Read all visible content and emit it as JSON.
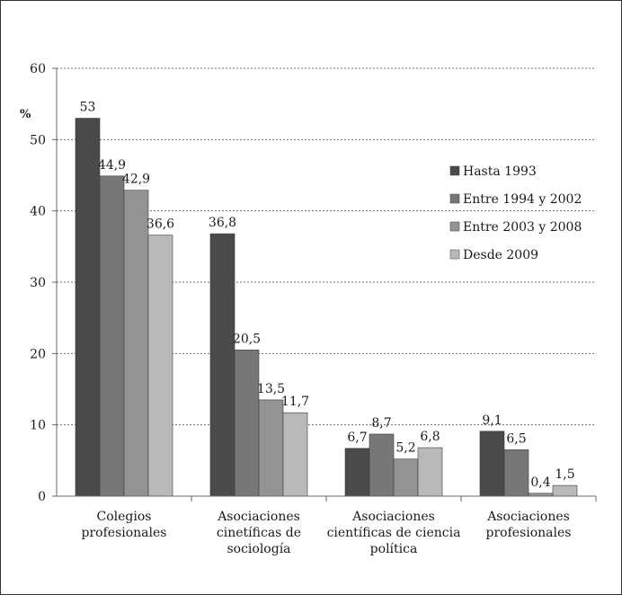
{
  "chart_data": {
    "type": "bar",
    "ylabel": "%",
    "ylim": [
      0,
      60
    ],
    "yticks": [
      0,
      10,
      20,
      30,
      40,
      50,
      60
    ],
    "grid": true,
    "legend_position": "right",
    "categories": [
      [
        "Colegios",
        "profesionales"
      ],
      [
        "Asociaciones",
        "cinetíficas de",
        "sociología"
      ],
      [
        "Asociaciones",
        "científicas de ciencia",
        "política"
      ],
      [
        "Asociaciones",
        "profesionales"
      ]
    ],
    "series": [
      {
        "name": "Hasta 1993",
        "color": "#4a4a4a",
        "values": [
          53,
          36.8,
          6.7,
          9.1
        ],
        "labels": [
          "53",
          "36,8",
          "6,7",
          "9,1"
        ]
      },
      {
        "name": "Entre 1994 y 2002",
        "color": "#777777",
        "values": [
          44.9,
          20.5,
          8.7,
          6.5
        ],
        "labels": [
          "44,9",
          "20,5",
          "8,7",
          "6,5"
        ]
      },
      {
        "name": "Entre 2003 y 2008",
        "color": "#939393",
        "values": [
          42.9,
          13.5,
          5.2,
          0.4
        ],
        "labels": [
          "42,9",
          "13,5",
          "5,2",
          "0,4"
        ]
      },
      {
        "name": "Desde 2009",
        "color": "#b9b9b9",
        "values": [
          36.6,
          11.7,
          6.8,
          1.5
        ],
        "labels": [
          "36,6",
          "11,7",
          "6,8",
          "1,5"
        ]
      }
    ]
  }
}
